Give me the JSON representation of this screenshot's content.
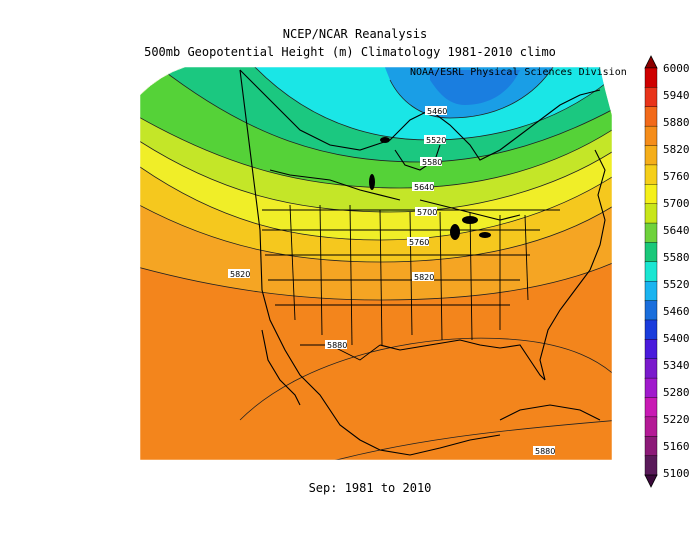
{
  "title_line1": "NCEP/NCAR Reanalysis",
  "title_line2": "500mb Geopotential Height (m) Climatology 1981-2010 climo",
  "credit": "NOAA/ESRL Physical Sciences Division",
  "period": "Sep: 1981 to 2010",
  "colorbar": {
    "labels": [
      "6000",
      "5940",
      "5880",
      "5820",
      "5760",
      "5700",
      "5640",
      "5580",
      "5520",
      "5460",
      "5400",
      "5340",
      "5280",
      "5220",
      "5160",
      "5100"
    ],
    "colors": [
      "#ce0000",
      "#e8341a",
      "#f26a1a",
      "#f58d1a",
      "#f5ae1a",
      "#f5cf1a",
      "#f5f01a",
      "#c8e61a",
      "#6fd23c",
      "#1ac87a",
      "#1ae6d2",
      "#1ab4f0",
      "#1a6edc",
      "#1a3cdc",
      "#4a1adc",
      "#7a1acc",
      "#a01acc",
      "#c81ab4",
      "#b41a96",
      "#8c1a78",
      "#5a1a5a"
    ]
  },
  "contour_labels": [
    "5460",
    "5520",
    "5580",
    "5640",
    "5700",
    "5760",
    "5820",
    "5820",
    "5880",
    "5880"
  ],
  "colors": {
    "orange_dark": "#f3851c",
    "orange": "#f5a523",
    "yellow_orange": "#f5c81e",
    "yellow": "#f0ee28",
    "yellow_green": "#c4e628",
    "green": "#55d238",
    "green_teal": "#1bc880",
    "cyan": "#1ae6e6",
    "blue": "#1a7ee0"
  }
}
